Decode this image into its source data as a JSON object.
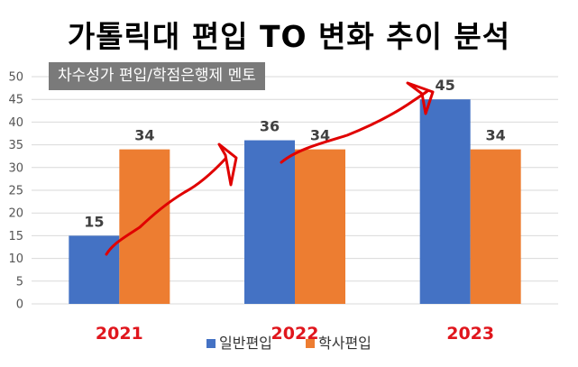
{
  "chart_data": {
    "type": "bar",
    "title": "가톨릭대 편입 TO 변화 추이 분석",
    "subtitle": "차수성가 편입/학점은행제 멘토",
    "categories": [
      "2021",
      "2022",
      "2023"
    ],
    "series": [
      {
        "name": "일반편입",
        "values": [
          15,
          36,
          45
        ],
        "color": "#4472C4"
      },
      {
        "name": "학사편입",
        "values": [
          34,
          34,
          34
        ],
        "color": "#ED7D31"
      }
    ],
    "ylim": [
      0,
      50
    ],
    "yticks": [
      0,
      5,
      10,
      15,
      20,
      25,
      30,
      35,
      40,
      45,
      50
    ],
    "grid": true,
    "legend": "bottom",
    "category_label_color": "#E0161D",
    "annotation_color": "#E00000"
  }
}
